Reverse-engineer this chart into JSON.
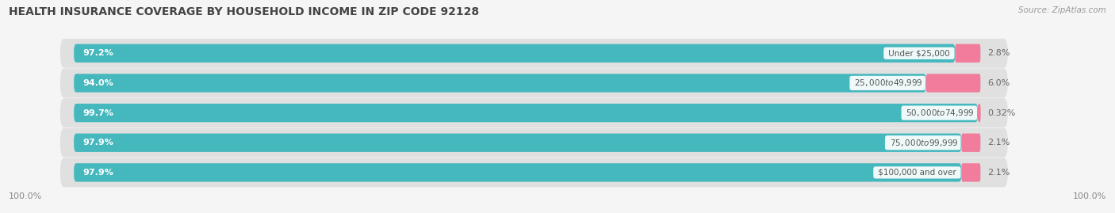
{
  "title": "HEALTH INSURANCE COVERAGE BY HOUSEHOLD INCOME IN ZIP CODE 92128",
  "source": "Source: ZipAtlas.com",
  "categories": [
    "Under $25,000",
    "$25,000 to $49,999",
    "$50,000 to $74,999",
    "$75,000 to $99,999",
    "$100,000 and over"
  ],
  "with_coverage": [
    97.2,
    94.0,
    99.7,
    97.9,
    97.9
  ],
  "without_coverage": [
    2.8,
    6.0,
    0.32,
    2.1,
    2.1
  ],
  "with_coverage_labels": [
    "97.2%",
    "94.0%",
    "99.7%",
    "97.9%",
    "97.9%"
  ],
  "without_coverage_labels": [
    "2.8%",
    "6.0%",
    "0.32%",
    "2.1%",
    "2.1%"
  ],
  "with_coverage_color": "#45B8BE",
  "without_coverage_color": "#F27C9B",
  "row_bg_color": "#e8e8e8",
  "title_fontsize": 10,
  "label_fontsize": 8,
  "tick_fontsize": 8,
  "legend_fontsize": 8.5,
  "xlim": [
    0,
    100
  ],
  "total_bar_width": 100,
  "bar_height": 0.62,
  "fig_bg_color": "#f5f5f5",
  "axes_bg_color": "#f5f5f5",
  "row_colors": [
    "#dcdcdc",
    "#e8e8e8"
  ]
}
